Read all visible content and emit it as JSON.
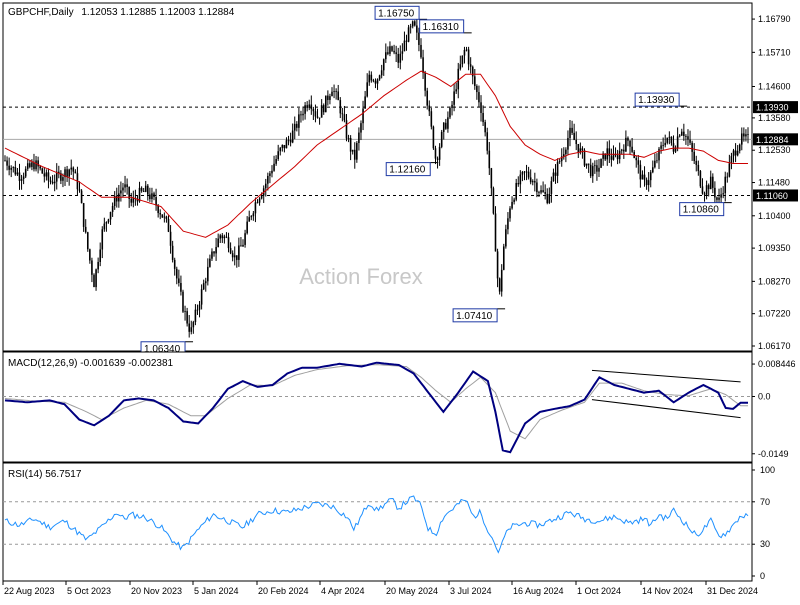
{
  "chart_data": [
    {
      "type": "candlestick",
      "title": "GBPCHF,Daily",
      "ohlc_header": "1.12053 1.12885 1.12003 1.12884",
      "watermark": "Action Forex",
      "ylim": [
        1.0617,
        1.1715
      ],
      "y_ticks": [
        "1.16790",
        "1.15710",
        "1.14600",
        "1.13580",
        "1.12530",
        "1.11480",
        "1.10400",
        "1.09350",
        "1.08270",
        "1.07220",
        "1.06170"
      ],
      "x_tick_labels": [
        "22 Aug 2023",
        "5 Oct 2023",
        "20 Nov 2023",
        "5 Jan 2024",
        "20 Feb 2024",
        "4 Apr 2024",
        "20 May 2024",
        "3 Jul 2024",
        "16 Aug 2024",
        "1 Oct 2024",
        "14 Nov 2024",
        "31 Dec 2024"
      ],
      "horizontal_levels": [
        {
          "value": 1.1393,
          "label": "1.13930",
          "style": "dashed"
        },
        {
          "value": 1.1106,
          "label": "1.11060",
          "style": "dashed"
        },
        {
          "value": 1.12884,
          "label": "1.12884",
          "style": "solid-gray"
        }
      ],
      "annotations": [
        {
          "label": "1.16750",
          "value": 1.1675,
          "x": 0.56
        },
        {
          "label": "1.16310",
          "value": 1.1631,
          "x": 0.62
        },
        {
          "label": "1.12160",
          "value": 1.1216,
          "x": 0.575
        },
        {
          "label": "1.06340",
          "value": 1.0634,
          "x": 0.245
        },
        {
          "label": "1.07410",
          "value": 1.0741,
          "x": 0.665
        },
        {
          "label": "1.13930",
          "value": 1.1393,
          "x": 0.91
        },
        {
          "label": "1.10860",
          "value": 1.1086,
          "x": 0.97
        }
      ],
      "close_series": [
        [
          0.0,
          1.122
        ],
        [
          0.02,
          1.117
        ],
        [
          0.04,
          1.121
        ],
        [
          0.06,
          1.115
        ],
        [
          0.08,
          1.118
        ],
        [
          0.09,
          1.12
        ],
        [
          0.1,
          1.112
        ],
        [
          0.11,
          1.095
        ],
        [
          0.12,
          1.082
        ],
        [
          0.13,
          1.098
        ],
        [
          0.14,
          1.105
        ],
        [
          0.15,
          1.11
        ],
        [
          0.16,
          1.114
        ],
        [
          0.17,
          1.108
        ],
        [
          0.18,
          1.111
        ],
        [
          0.19,
          1.112
        ],
        [
          0.2,
          1.109
        ],
        [
          0.21,
          1.105
        ],
        [
          0.22,
          1.1
        ],
        [
          0.23,
          1.085
        ],
        [
          0.24,
          1.074
        ],
        [
          0.25,
          1.066
        ],
        [
          0.26,
          1.075
        ],
        [
          0.27,
          1.084
        ],
        [
          0.28,
          1.092
        ],
        [
          0.29,
          1.098
        ],
        [
          0.3,
          1.096
        ],
        [
          0.31,
          1.09
        ],
        [
          0.32,
          1.095
        ],
        [
          0.33,
          1.104
        ],
        [
          0.34,
          1.11
        ],
        [
          0.35,
          1.114
        ],
        [
          0.36,
          1.12
        ],
        [
          0.37,
          1.125
        ],
        [
          0.38,
          1.128
        ],
        [
          0.39,
          1.132
        ],
        [
          0.4,
          1.138
        ],
        [
          0.41,
          1.142
        ],
        [
          0.42,
          1.136
        ],
        [
          0.43,
          1.14
        ],
        [
          0.44,
          1.146
        ],
        [
          0.45,
          1.14
        ],
        [
          0.46,
          1.13
        ],
        [
          0.47,
          1.122
        ],
        [
          0.48,
          1.135
        ],
        [
          0.49,
          1.15
        ],
        [
          0.5,
          1.148
        ],
        [
          0.51,
          1.155
        ],
        [
          0.52,
          1.158
        ],
        [
          0.53,
          1.154
        ],
        [
          0.54,
          1.162
        ],
        [
          0.55,
          1.166
        ],
        [
          0.56,
          1.157
        ],
        [
          0.57,
          1.138
        ],
        [
          0.58,
          1.122
        ],
        [
          0.59,
          1.132
        ],
        [
          0.6,
          1.138
        ],
        [
          0.61,
          1.15
        ],
        [
          0.62,
          1.159
        ],
        [
          0.63,
          1.148
        ],
        [
          0.64,
          1.14
        ],
        [
          0.65,
          1.125
        ],
        [
          0.66,
          1.095
        ],
        [
          0.665,
          1.076
        ],
        [
          0.67,
          1.092
        ],
        [
          0.68,
          1.108
        ],
        [
          0.69,
          1.114
        ],
        [
          0.7,
          1.118
        ],
        [
          0.71,
          1.116
        ],
        [
          0.72,
          1.112
        ],
        [
          0.73,
          1.11
        ],
        [
          0.74,
          1.118
        ],
        [
          0.75,
          1.124
        ],
        [
          0.76,
          1.131
        ],
        [
          0.77,
          1.127
        ],
        [
          0.78,
          1.122
        ],
        [
          0.79,
          1.118
        ],
        [
          0.8,
          1.12
        ],
        [
          0.81,
          1.125
        ],
        [
          0.82,
          1.122
        ],
        [
          0.83,
          1.126
        ],
        [
          0.84,
          1.129
        ],
        [
          0.85,
          1.121
        ],
        [
          0.86,
          1.114
        ],
        [
          0.87,
          1.118
        ],
        [
          0.88,
          1.124
        ],
        [
          0.89,
          1.13
        ],
        [
          0.9,
          1.126
        ],
        [
          0.91,
          1.133
        ],
        [
          0.92,
          1.128
        ],
        [
          0.93,
          1.12
        ],
        [
          0.94,
          1.112
        ],
        [
          0.95,
          1.115
        ],
        [
          0.96,
          1.108
        ],
        [
          0.97,
          1.116
        ],
        [
          0.98,
          1.124
        ],
        [
          0.99,
          1.1288
        ]
      ],
      "ma_series": [
        [
          0.0,
          1.126
        ],
        [
          0.05,
          1.12
        ],
        [
          0.1,
          1.115
        ],
        [
          0.13,
          1.11
        ],
        [
          0.17,
          1.11
        ],
        [
          0.21,
          1.107
        ],
        [
          0.24,
          1.099
        ],
        [
          0.27,
          1.097
        ],
        [
          0.3,
          1.101
        ],
        [
          0.33,
          1.108
        ],
        [
          0.36,
          1.114
        ],
        [
          0.39,
          1.12
        ],
        [
          0.42,
          1.127
        ],
        [
          0.45,
          1.132
        ],
        [
          0.48,
          1.137
        ],
        [
          0.51,
          1.143
        ],
        [
          0.54,
          1.148
        ],
        [
          0.56,
          1.151
        ],
        [
          0.58,
          1.149
        ],
        [
          0.6,
          1.146
        ],
        [
          0.62,
          1.15
        ],
        [
          0.64,
          1.15
        ],
        [
          0.66,
          1.143
        ],
        [
          0.68,
          1.133
        ],
        [
          0.7,
          1.127
        ],
        [
          0.72,
          1.124
        ],
        [
          0.74,
          1.122
        ],
        [
          0.76,
          1.124
        ],
        [
          0.78,
          1.125
        ],
        [
          0.8,
          1.124
        ],
        [
          0.82,
          1.124
        ],
        [
          0.84,
          1.124
        ],
        [
          0.86,
          1.123
        ],
        [
          0.88,
          1.125
        ],
        [
          0.9,
          1.126
        ],
        [
          0.92,
          1.126
        ],
        [
          0.94,
          1.125
        ],
        [
          0.96,
          1.122
        ],
        [
          0.98,
          1.121
        ],
        [
          0.99,
          1.121
        ]
      ]
    },
    {
      "type": "line",
      "title": "MACD(12,26,9) -0.001639 -0.002381",
      "ylim": [
        -0.016,
        0.0095
      ],
      "y_ticks": [
        "0.008446",
        "0.0",
        "-0.0149"
      ],
      "macd_series": [
        [
          0.0,
          -0.001
        ],
        [
          0.03,
          -0.0015
        ],
        [
          0.06,
          -0.001
        ],
        [
          0.08,
          -0.002
        ],
        [
          0.1,
          -0.006
        ],
        [
          0.12,
          -0.0075
        ],
        [
          0.14,
          -0.005
        ],
        [
          0.16,
          -0.001
        ],
        [
          0.18,
          -0.0005
        ],
        [
          0.2,
          -0.001
        ],
        [
          0.22,
          -0.003
        ],
        [
          0.24,
          -0.0065
        ],
        [
          0.26,
          -0.007
        ],
        [
          0.28,
          -0.003
        ],
        [
          0.3,
          0.002
        ],
        [
          0.32,
          0.004
        ],
        [
          0.34,
          0.0025
        ],
        [
          0.36,
          0.003
        ],
        [
          0.38,
          0.006
        ],
        [
          0.4,
          0.0075
        ],
        [
          0.42,
          0.0075
        ],
        [
          0.45,
          0.0085
        ],
        [
          0.48,
          0.0078
        ],
        [
          0.5,
          0.0088
        ],
        [
          0.53,
          0.0082
        ],
        [
          0.55,
          0.006
        ],
        [
          0.57,
          0.001
        ],
        [
          0.59,
          -0.004
        ],
        [
          0.61,
          0.001
        ],
        [
          0.63,
          0.0065
        ],
        [
          0.65,
          0.004
        ],
        [
          0.66,
          -0.004
        ],
        [
          0.67,
          -0.014
        ],
        [
          0.68,
          -0.0145
        ],
        [
          0.7,
          -0.007
        ],
        [
          0.72,
          -0.004
        ],
        [
          0.74,
          -0.0032
        ],
        [
          0.76,
          -0.0025
        ],
        [
          0.78,
          -0.0008
        ],
        [
          0.8,
          0.005
        ],
        [
          0.82,
          0.003
        ],
        [
          0.84,
          0.002
        ],
        [
          0.86,
          0.001
        ],
        [
          0.88,
          0.0015
        ],
        [
          0.9,
          -0.0015
        ],
        [
          0.92,
          0.001
        ],
        [
          0.94,
          0.003
        ],
        [
          0.96,
          0.001
        ],
        [
          0.97,
          -0.003
        ],
        [
          0.98,
          -0.0032
        ],
        [
          0.99,
          -0.0016
        ]
      ],
      "signal_series": [
        [
          0.0,
          -0.0005
        ],
        [
          0.04,
          -0.0012
        ],
        [
          0.08,
          -0.0015
        ],
        [
          0.11,
          -0.004
        ],
        [
          0.13,
          -0.006
        ],
        [
          0.16,
          -0.003
        ],
        [
          0.19,
          -0.001
        ],
        [
          0.22,
          -0.002
        ],
        [
          0.25,
          -0.005
        ],
        [
          0.27,
          -0.005
        ],
        [
          0.3,
          -0.0005
        ],
        [
          0.33,
          0.003
        ],
        [
          0.36,
          0.0028
        ],
        [
          0.39,
          0.0055
        ],
        [
          0.42,
          0.007
        ],
        [
          0.46,
          0.008
        ],
        [
          0.5,
          0.0083
        ],
        [
          0.54,
          0.0078
        ],
        [
          0.56,
          0.005
        ],
        [
          0.58,
          0.0015
        ],
        [
          0.6,
          -0.0015
        ],
        [
          0.62,
          0.002
        ],
        [
          0.64,
          0.005
        ],
        [
          0.66,
          0.001
        ],
        [
          0.68,
          -0.009
        ],
        [
          0.7,
          -0.011
        ],
        [
          0.72,
          -0.006
        ],
        [
          0.75,
          -0.0035
        ],
        [
          0.78,
          -0.0015
        ],
        [
          0.8,
          0.0035
        ],
        [
          0.83,
          0.0035
        ],
        [
          0.86,
          0.0015
        ],
        [
          0.89,
          0.0005
        ],
        [
          0.92,
          0.0002
        ],
        [
          0.95,
          0.002
        ],
        [
          0.97,
          0.0005
        ],
        [
          0.99,
          -0.0024
        ]
      ],
      "trendlines": [
        {
          "from": [
            0.79,
            0.0068
          ],
          "to": [
            0.99,
            0.0038
          ]
        },
        {
          "from": [
            0.79,
            -0.0008
          ],
          "to": [
            0.99,
            -0.0055
          ]
        }
      ]
    },
    {
      "type": "line",
      "title": "RSI(14) 56.7517",
      "ylim": [
        0,
        100
      ],
      "y_ticks": [
        "100",
        "70",
        "30",
        "0"
      ],
      "y_tick_values": [
        100,
        70,
        30,
        0
      ],
      "levels": [
        70,
        30
      ],
      "rsi_series": [
        [
          0.0,
          52
        ],
        [
          0.02,
          48
        ],
        [
          0.04,
          54
        ],
        [
          0.06,
          46
        ],
        [
          0.08,
          52
        ],
        [
          0.1,
          40
        ],
        [
          0.11,
          34
        ],
        [
          0.13,
          46
        ],
        [
          0.15,
          60
        ],
        [
          0.16,
          54
        ],
        [
          0.17,
          58
        ],
        [
          0.19,
          55
        ],
        [
          0.21,
          46
        ],
        [
          0.23,
          30
        ],
        [
          0.24,
          26
        ],
        [
          0.26,
          44
        ],
        [
          0.28,
          58
        ],
        [
          0.3,
          52
        ],
        [
          0.32,
          46
        ],
        [
          0.34,
          58
        ],
        [
          0.36,
          62
        ],
        [
          0.38,
          60
        ],
        [
          0.4,
          64
        ],
        [
          0.42,
          68
        ],
        [
          0.44,
          66
        ],
        [
          0.46,
          56
        ],
        [
          0.47,
          44
        ],
        [
          0.49,
          70
        ],
        [
          0.5,
          62
        ],
        [
          0.52,
          72
        ],
        [
          0.53,
          64
        ],
        [
          0.54,
          70
        ],
        [
          0.55,
          74
        ],
        [
          0.56,
          66
        ],
        [
          0.57,
          44
        ],
        [
          0.58,
          40
        ],
        [
          0.59,
          56
        ],
        [
          0.61,
          68
        ],
        [
          0.62,
          72
        ],
        [
          0.63,
          56
        ],
        [
          0.64,
          60
        ],
        [
          0.65,
          44
        ],
        [
          0.66,
          30
        ],
        [
          0.665,
          20
        ],
        [
          0.67,
          34
        ],
        [
          0.68,
          46
        ],
        [
          0.7,
          50
        ],
        [
          0.72,
          48
        ],
        [
          0.74,
          54
        ],
        [
          0.76,
          60
        ],
        [
          0.78,
          54
        ],
        [
          0.8,
          52
        ],
        [
          0.82,
          56
        ],
        [
          0.84,
          50
        ],
        [
          0.86,
          54
        ],
        [
          0.87,
          48
        ],
        [
          0.88,
          58
        ],
        [
          0.89,
          54
        ],
        [
          0.9,
          62
        ],
        [
          0.91,
          54
        ],
        [
          0.92,
          46
        ],
        [
          0.93,
          38
        ],
        [
          0.94,
          44
        ],
        [
          0.95,
          52
        ],
        [
          0.96,
          38
        ],
        [
          0.97,
          40
        ],
        [
          0.98,
          48
        ],
        [
          0.99,
          56.75
        ]
      ]
    }
  ],
  "colors": {
    "candle": "#000000",
    "ma": "#cc0000",
    "macd": "#000080",
    "signal": "#a0a0a0",
    "rsi": "#1e90ff",
    "grid": "#b0b0b0",
    "label_box": "#1f3aa5"
  }
}
